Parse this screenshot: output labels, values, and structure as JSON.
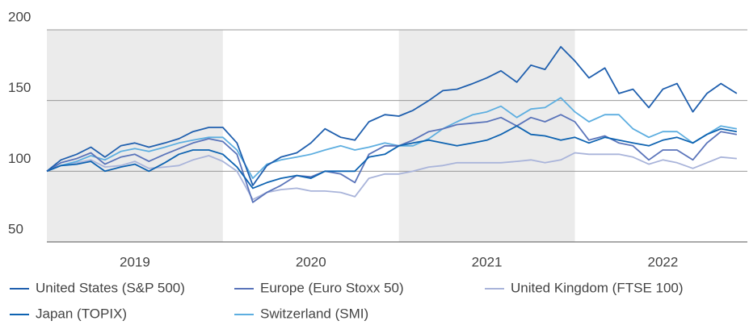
{
  "chart_data": {
    "type": "line",
    "x": [
      2019,
      2019.08,
      2019.17,
      2019.25,
      2019.33,
      2019.42,
      2019.5,
      2019.58,
      2019.67,
      2019.75,
      2019.83,
      2019.92,
      2020,
      2020.08,
      2020.17,
      2020.25,
      2020.33,
      2020.42,
      2020.5,
      2020.58,
      2020.67,
      2020.75,
      2020.83,
      2020.92,
      2021,
      2021.08,
      2021.17,
      2021.25,
      2021.33,
      2021.42,
      2021.5,
      2021.58,
      2021.67,
      2021.75,
      2021.83,
      2021.92,
      2022,
      2022.08,
      2022.17,
      2022.25,
      2022.33,
      2022.42,
      2022.5,
      2022.58,
      2022.67,
      2022.75,
      2022.83,
      2022.92
    ],
    "xlim": [
      2019,
      2022.98
    ],
    "xticks": [
      {
        "value": 2019.5,
        "label": "2019"
      },
      {
        "value": 2020.5,
        "label": "2020"
      },
      {
        "value": 2021.5,
        "label": "2021"
      },
      {
        "value": 2022.5,
        "label": "2022"
      }
    ],
    "ylim": [
      50,
      200
    ],
    "yticks": [
      50,
      100,
      150,
      200
    ],
    "grid": true,
    "series": [
      {
        "name": "United States (S&P 500)",
        "color": "#1f5fae",
        "values": [
          100,
          108,
          112,
          117,
          110,
          118,
          120,
          117,
          120,
          123,
          128,
          131,
          131,
          120,
          90,
          104,
          110,
          113,
          120,
          130,
          124,
          122,
          135,
          140,
          139,
          143,
          150,
          157,
          158,
          162,
          166,
          171,
          163,
          175,
          172,
          188,
          178,
          166,
          173,
          155,
          158,
          145,
          158,
          162,
          142,
          155,
          162,
          155
        ]
      },
      {
        "name": "Europe (Euro Stoxx 50)",
        "color": "#5a74ba",
        "values": [
          100,
          106,
          109,
          113,
          105,
          110,
          112,
          107,
          112,
          116,
          120,
          123,
          121,
          112,
          78,
          85,
          90,
          97,
          96,
          100,
          98,
          92,
          112,
          118,
          118,
          122,
          128,
          130,
          133,
          134,
          135,
          138,
          132,
          138,
          135,
          140,
          135,
          122,
          125,
          120,
          118,
          108,
          115,
          115,
          108,
          120,
          128,
          126
        ]
      },
      {
        "name": "United Kingdom (FTSE 100)",
        "color": "#a9b4da",
        "values": [
          100,
          104,
          106,
          108,
          103,
          104,
          107,
          102,
          103,
          104,
          108,
          111,
          107,
          100,
          80,
          85,
          87,
          88,
          86,
          86,
          85,
          82,
          95,
          98,
          98,
          100,
          103,
          104,
          106,
          106,
          106,
          106,
          107,
          108,
          106,
          108,
          113,
          112,
          112,
          112,
          110,
          105,
          108,
          106,
          102,
          106,
          110,
          109
        ]
      },
      {
        "name": "Japan (TOPIX)",
        "color": "#0e63b1",
        "values": [
          100,
          104,
          105,
          107,
          100,
          103,
          105,
          100,
          106,
          112,
          115,
          115,
          112,
          103,
          88,
          92,
          95,
          97,
          95,
          100,
          100,
          100,
          110,
          112,
          118,
          120,
          122,
          120,
          118,
          120,
          122,
          126,
          132,
          126,
          125,
          122,
          124,
          120,
          124,
          122,
          120,
          118,
          122,
          124,
          120,
          126,
          130,
          128
        ]
      },
      {
        "name": "Switzerland (SMI)",
        "color": "#5daee0",
        "values": [
          100,
          104,
          107,
          111,
          108,
          114,
          116,
          114,
          117,
          120,
          122,
          124,
          124,
          115,
          95,
          105,
          108,
          110,
          112,
          115,
          118,
          115,
          117,
          120,
          118,
          118,
          123,
          130,
          135,
          140,
          142,
          146,
          138,
          144,
          145,
          152,
          142,
          135,
          140,
          140,
          130,
          124,
          128,
          128,
          120,
          126,
          132,
          130
        ]
      }
    ]
  }
}
